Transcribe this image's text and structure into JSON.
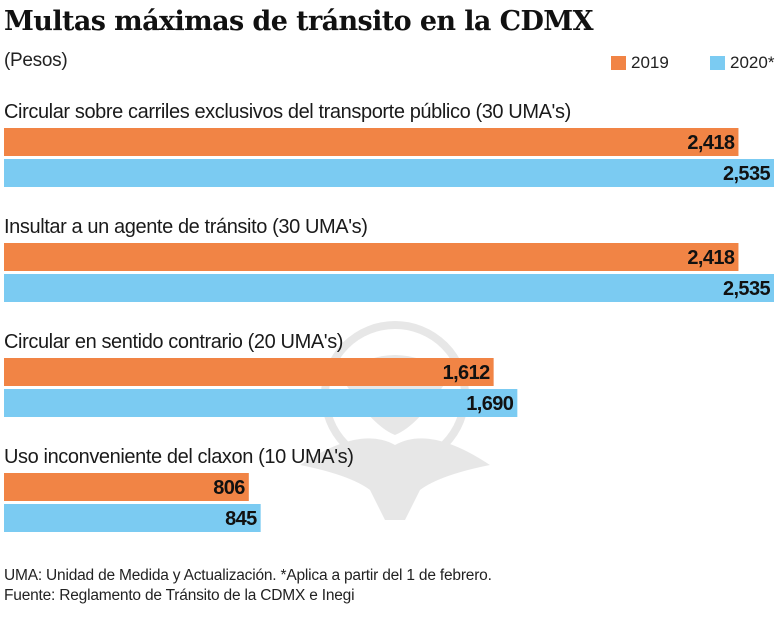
{
  "chart_data": {
    "type": "bar",
    "orientation": "horizontal",
    "title": "Multas máximas de tránsito en la CDMX",
    "subtitle": "(Pesos)",
    "xlabel": "",
    "ylabel": "",
    "xlim": [
      0,
      2535
    ],
    "grid": false,
    "legend_position": "top-right",
    "categories": [
      "Circular sobre carriles exclusivos del transporte público (30 UMA's)",
      "Insultar a un agente de tránsito (30 UMA's)",
      "Circular en sentido contrario (20 UMA's)",
      "Uso inconveniente del claxon (10 UMA's)"
    ],
    "series": [
      {
        "name": "2019",
        "color": "#F18445",
        "values": [
          2418,
          2418,
          1612,
          806
        ],
        "labels": [
          "2,418",
          "2,418",
          "1,612",
          "806"
        ]
      },
      {
        "name": "2020*",
        "color": "#7BCBF2",
        "values": [
          2535,
          2535,
          1690,
          845
        ],
        "labels": [
          "2,535",
          "2,535",
          "1,690",
          "845"
        ]
      }
    ],
    "annotations": [
      "UMA: Unidad de Medida y Actualización. *Aplica a partir del 1 de febrero.",
      "Fuente: Reglamento de Tránsito de la CDMX e Inegi"
    ]
  },
  "legend": [
    {
      "label": "2019",
      "color": "#F18445"
    },
    {
      "label": "2020*",
      "color": "#7BCBF2"
    }
  ],
  "watermark_icon": "eagle-emblem-icon"
}
